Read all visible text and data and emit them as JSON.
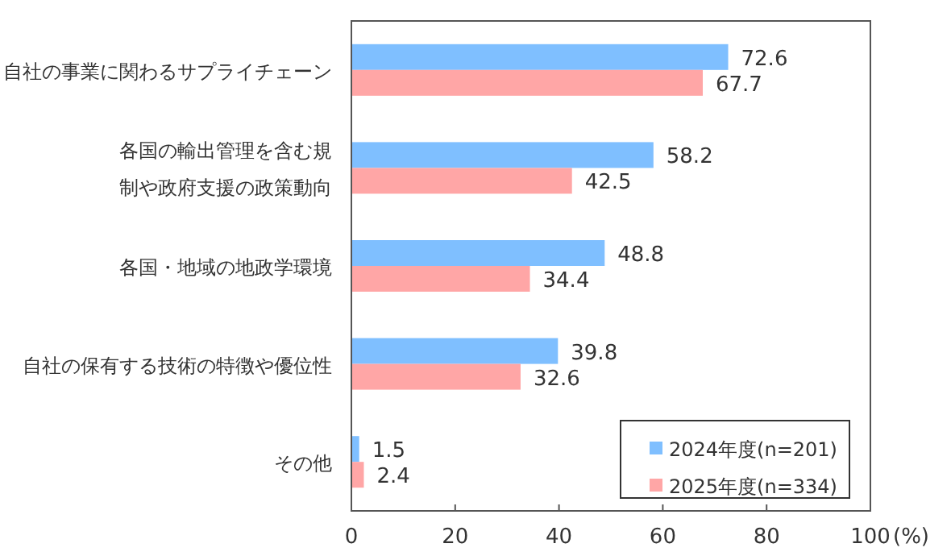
{
  "chart_data": {
    "type": "bar",
    "orientation": "horizontal",
    "categories": [
      "自社の事業に関わるサプライチェーン",
      "各国の輸出管理を含む規制や政府支援の政策動向",
      "各国・地域の地政学環境",
      "自社の保有する技術の特徴や優位性",
      "その他"
    ],
    "series": [
      {
        "name": "2024年度(n=201)",
        "color": "#7fbfff",
        "values": [
          72.6,
          58.2,
          48.8,
          39.8,
          1.5
        ]
      },
      {
        "name": "2025年度(n=334)",
        "color": "#ffa6a6",
        "values": [
          67.7,
          42.5,
          34.4,
          32.6,
          2.4
        ]
      }
    ],
    "xlim": [
      0,
      100
    ],
    "xticks": [
      0,
      20,
      40,
      60,
      80,
      100
    ],
    "xlabel": "(%)",
    "data_labels": true,
    "grid": false,
    "legend": "bottom right"
  }
}
